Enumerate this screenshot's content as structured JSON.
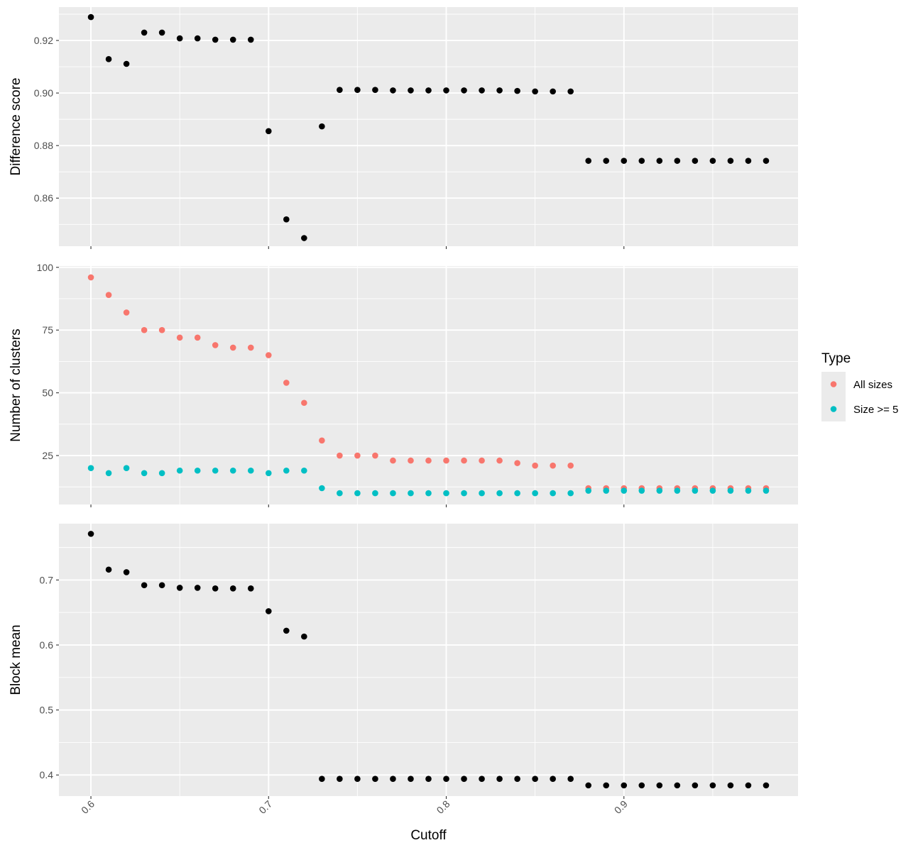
{
  "chart_data": {
    "type": "scatter",
    "x_label": "Cutoff",
    "x_ticks": [
      0.6,
      0.7,
      0.8,
      0.9
    ],
    "x_tick_labels": [
      "0.6",
      "0.7",
      "0.8",
      "0.9"
    ],
    "xlim": [
      0.582,
      0.998
    ],
    "colors": {
      "default": "#000000",
      "all_sizes": "#F8766D",
      "size_ge_5": "#00BFC4",
      "panel_bg": "#EBEBEB",
      "grid": "#FFFFFF"
    },
    "legend": {
      "title": "Type",
      "position": "right",
      "entries": [
        {
          "label": "All sizes",
          "color": "#F8766D"
        },
        {
          "label": "Size >= 5",
          "color": "#00BFC4"
        }
      ]
    },
    "grid": true,
    "panels": [
      {
        "ylabel": "Difference score",
        "ylim": [
          0.8417,
          0.9327
        ],
        "y_ticks": [
          0.86,
          0.88,
          0.9,
          0.92
        ],
        "y_tick_labels": [
          "0.86",
          "0.88",
          "0.90",
          "0.92"
        ],
        "series": [
          {
            "color": "#000000",
            "x": [
              0.6,
              0.61,
              0.62,
              0.63,
              0.64,
              0.65,
              0.66,
              0.67,
              0.68,
              0.69,
              0.7,
              0.71,
              0.72,
              0.73,
              0.74,
              0.75,
              0.76,
              0.77,
              0.78,
              0.79,
              0.8,
              0.81,
              0.82,
              0.83,
              0.84,
              0.85,
              0.86,
              0.87,
              0.88,
              0.89,
              0.9,
              0.91,
              0.92,
              0.93,
              0.94,
              0.95,
              0.96,
              0.97,
              0.98
            ],
            "y": [
              0.9289,
              0.9129,
              0.9111,
              0.923,
              0.923,
              0.9208,
              0.9208,
              0.9203,
              0.9203,
              0.9203,
              0.8855,
              0.8519,
              0.8448,
              0.8873,
              0.9012,
              0.9012,
              0.9012,
              0.901,
              0.901,
              0.901,
              0.901,
              0.901,
              0.901,
              0.901,
              0.9008,
              0.9006,
              0.9006,
              0.9006,
              0.8742,
              0.8742,
              0.8742,
              0.8742,
              0.8742,
              0.8742,
              0.8742,
              0.8742,
              0.8742,
              0.8742,
              0.8742
            ]
          }
        ]
      },
      {
        "ylabel": "Number of clusters",
        "ylim": [
          5.5,
          100.5
        ],
        "y_ticks": [
          25,
          50,
          75,
          100
        ],
        "y_tick_labels": [
          "25",
          "50",
          "75",
          "100"
        ],
        "series": [
          {
            "name": "All sizes",
            "color": "#F8766D",
            "x": [
              0.6,
              0.61,
              0.62,
              0.63,
              0.64,
              0.65,
              0.66,
              0.67,
              0.68,
              0.69,
              0.7,
              0.71,
              0.72,
              0.73,
              0.74,
              0.75,
              0.76,
              0.77,
              0.78,
              0.79,
              0.8,
              0.81,
              0.82,
              0.83,
              0.84,
              0.85,
              0.86,
              0.87,
              0.88,
              0.89,
              0.9,
              0.91,
              0.92,
              0.93,
              0.94,
              0.95,
              0.96,
              0.97,
              0.98
            ],
            "y": [
              96,
              89,
              82,
              75,
              75,
              72,
              72,
              69,
              68,
              68,
              65,
              54,
              46,
              31,
              25,
              25,
              25,
              23,
              23,
              23,
              23,
              23,
              23,
              23,
              22,
              21,
              21,
              21,
              12,
              12,
              12,
              12,
              12,
              12,
              12,
              12,
              12,
              12,
              12
            ]
          },
          {
            "name": "Size >= 5",
            "color": "#00BFC4",
            "x": [
              0.6,
              0.61,
              0.62,
              0.63,
              0.64,
              0.65,
              0.66,
              0.67,
              0.68,
              0.69,
              0.7,
              0.71,
              0.72,
              0.73,
              0.74,
              0.75,
              0.76,
              0.77,
              0.78,
              0.79,
              0.8,
              0.81,
              0.82,
              0.83,
              0.84,
              0.85,
              0.86,
              0.87,
              0.88,
              0.89,
              0.9,
              0.91,
              0.92,
              0.93,
              0.94,
              0.95,
              0.96,
              0.97,
              0.98
            ],
            "y": [
              20,
              18,
              20,
              18,
              18,
              19,
              19,
              19,
              19,
              19,
              18,
              19,
              19,
              12,
              10,
              10,
              10,
              10,
              10,
              10,
              10,
              10,
              10,
              10,
              10,
              10,
              10,
              10,
              11,
              11,
              11,
              11,
              11,
              11,
              11,
              11,
              11,
              11,
              11
            ]
          }
        ]
      },
      {
        "ylabel": "Block mean",
        "ylim": [
          0.3675,
          0.7867
        ],
        "y_ticks": [
          0.4,
          0.5,
          0.6,
          0.7
        ],
        "y_tick_labels": [
          "0.4",
          "0.5",
          "0.6",
          "0.7"
        ],
        "series": [
          {
            "color": "#000000",
            "x": [
              0.6,
              0.61,
              0.62,
              0.63,
              0.64,
              0.65,
              0.66,
              0.67,
              0.68,
              0.69,
              0.7,
              0.71,
              0.72,
              0.73,
              0.74,
              0.75,
              0.76,
              0.77,
              0.78,
              0.79,
              0.8,
              0.81,
              0.82,
              0.83,
              0.84,
              0.85,
              0.86,
              0.87,
              0.88,
              0.89,
              0.9,
              0.91,
              0.92,
              0.93,
              0.94,
              0.95,
              0.96,
              0.97,
              0.98
            ],
            "y": [
              0.771,
              0.716,
              0.712,
              0.692,
              0.692,
              0.688,
              0.688,
              0.687,
              0.687,
              0.687,
              0.652,
              0.622,
              0.613,
              0.394,
              0.394,
              0.394,
              0.394,
              0.394,
              0.394,
              0.394,
              0.394,
              0.394,
              0.394,
              0.394,
              0.394,
              0.394,
              0.394,
              0.394,
              0.384,
              0.384,
              0.384,
              0.384,
              0.384,
              0.384,
              0.384,
              0.384,
              0.384,
              0.384,
              0.384
            ]
          }
        ]
      }
    ]
  }
}
